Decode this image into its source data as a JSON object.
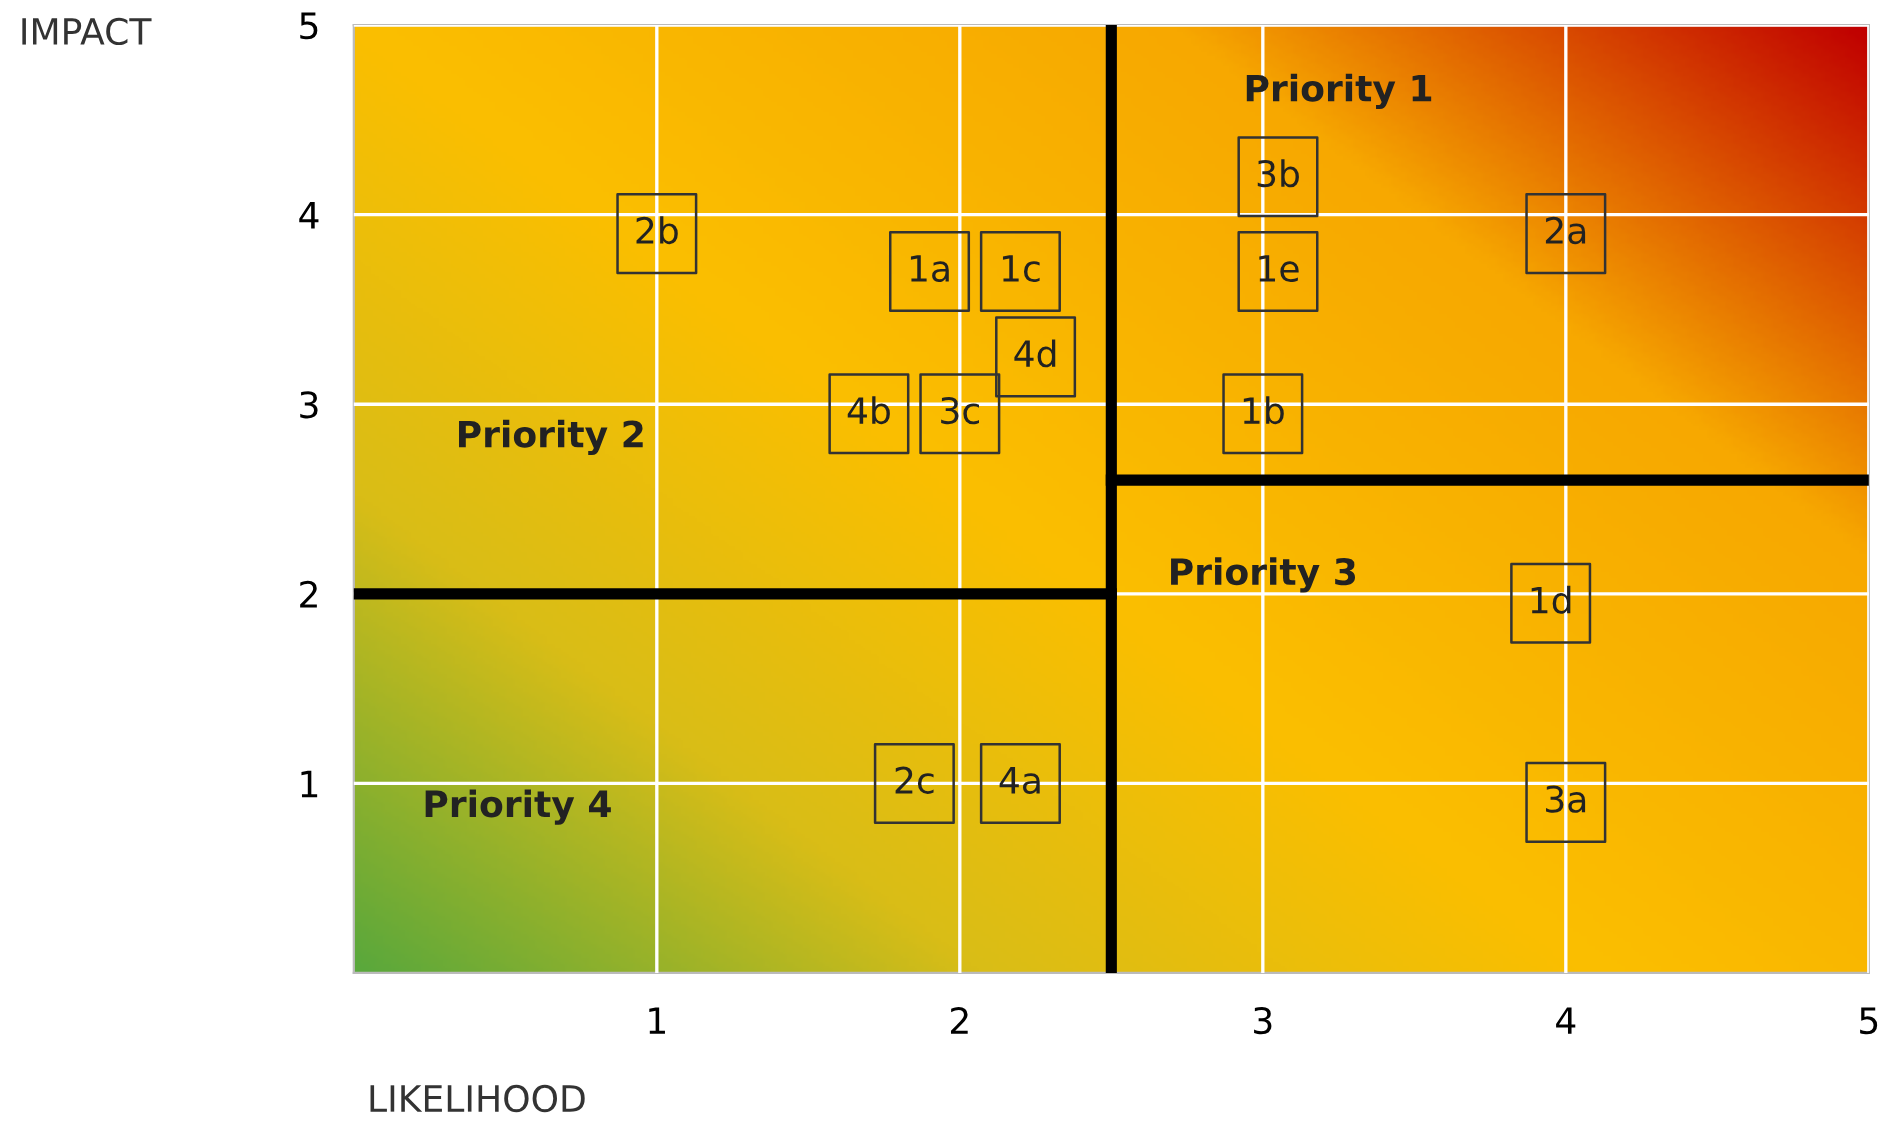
{
  "chart_data": {
    "type": "scatter",
    "xlabel": "LIKELIHOOD",
    "ylabel": "IMPACT",
    "xlim": [
      0,
      5
    ],
    "ylim": [
      0,
      5
    ],
    "xticks": [
      1,
      2,
      3,
      4,
      5
    ],
    "yticks": [
      1,
      2,
      3,
      4,
      5
    ],
    "grid": true,
    "series": [
      {
        "color": "#333333",
        "marker": "square",
        "x": [
          1.0,
          1.9,
          2.2,
          2.25,
          1.7,
          2.0,
          3.05,
          3.05,
          3.0,
          4.0,
          3.95,
          4.0,
          1.85,
          2.2
        ],
        "values": [
          3.9,
          3.7,
          3.7,
          3.25,
          2.95,
          2.95,
          4.2,
          3.7,
          2.95,
          3.9,
          1.95,
          0.9,
          1.0,
          1.0
        ]
      },
      {
        "type": "line",
        "color": "#000000",
        "x": [
          0,
          2.5
        ],
        "values": [
          2.0,
          2.0
        ]
      },
      {
        "type": "line",
        "color": "#000000",
        "x": [
          2.5,
          5
        ],
        "values": [
          2.6,
          2.6
        ]
      }
    ],
    "ref_lines": [
      {
        "axis": "x",
        "value": 2.5,
        "color": "#000000"
      }
    ],
    "annotations": [
      "Priority 1",
      "Priority 2",
      "Priority 3",
      "Priority 4",
      {
        "text": "2b",
        "x": 1.0,
        "y": 3.9
      },
      {
        "text": "1a",
        "x": 1.9,
        "y": 3.7
      },
      {
        "text": "1c",
        "x": 2.2,
        "y": 3.7
      },
      {
        "text": "4d",
        "x": 2.25,
        "y": 3.25
      },
      {
        "text": "4b",
        "x": 1.7,
        "y": 2.95
      },
      {
        "text": "3c",
        "x": 2.0,
        "y": 2.95
      },
      {
        "text": "3b",
        "x": 3.05,
        "y": 4.2
      },
      {
        "text": "1e",
        "x": 3.05,
        "y": 3.7
      },
      {
        "text": "1b",
        "x": 3.0,
        "y": 2.95
      },
      {
        "text": "2a",
        "x": 4.0,
        "y": 3.9
      },
      {
        "text": "1d",
        "x": 3.95,
        "y": 1.95
      },
      {
        "text": "3a",
        "x": 4.0,
        "y": 0.9
      },
      {
        "text": "2c",
        "x": 1.85,
        "y": 1.0
      },
      {
        "text": "4a",
        "x": 2.2,
        "y": 1.0
      }
    ]
  }
}
